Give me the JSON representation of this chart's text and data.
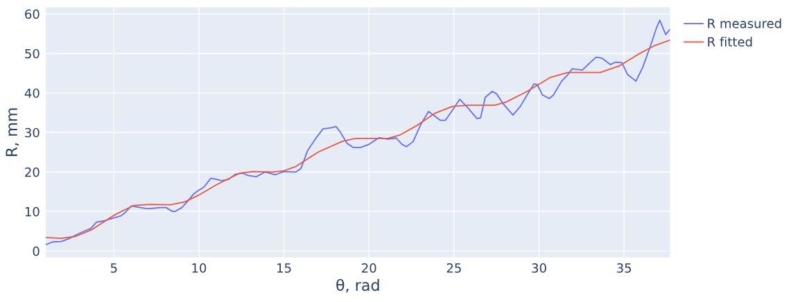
{
  "chart_data": {
    "type": "line",
    "xlabel": "θ, rad",
    "ylabel": "R, mm",
    "xlim": [
      1,
      37.7
    ],
    "ylim": [
      -1.6,
      61.7
    ],
    "xticks": [
      5,
      10,
      15,
      20,
      25,
      30,
      35
    ],
    "yticks": [
      0,
      10,
      20,
      30,
      40,
      50,
      60
    ],
    "grid": true,
    "legend": "top right",
    "marker": "none",
    "line_style": "solid",
    "series": [
      {
        "name": "R measured",
        "color": "#636efa",
        "x": [
          1.0,
          1.4,
          1.9,
          2.35,
          2.75,
          3.3,
          3.64,
          3.98,
          4.39,
          4.93,
          5.41,
          5.68,
          6.02,
          6.43,
          6.97,
          7.79,
          8.06,
          8.4,
          8.6,
          9.0,
          9.36,
          9.7,
          9.97,
          10.3,
          10.7,
          11.0,
          11.33,
          11.73,
          12.14,
          12.55,
          12.9,
          13.37,
          13.9,
          14.5,
          15.0,
          15.7,
          16.0,
          16.4,
          16.9,
          17.3,
          17.8,
          18.06,
          18.3,
          18.7,
          19.08,
          19.5,
          20.0,
          20.6,
          21.1,
          21.6,
          21.94,
          22.2,
          22.6,
          23.03,
          23.5,
          23.85,
          24.18,
          24.5,
          24.87,
          25.34,
          25.8,
          26.36,
          26.56,
          26.84,
          27.25,
          27.5,
          27.9,
          28.47,
          28.9,
          29.3,
          29.7,
          29.9,
          30.2,
          30.6,
          30.85,
          31.33,
          31.67,
          31.94,
          32.55,
          32.96,
          33.37,
          33.7,
          34.2,
          34.5,
          34.87,
          35.2,
          35.7,
          36.1,
          36.56,
          36.9,
          37.1,
          37.45,
          37.7
        ],
        "values": [
          1.6,
          2.3,
          2.4,
          3.1,
          4.0,
          5.1,
          5.7,
          7.3,
          7.6,
          8.3,
          8.9,
          9.8,
          11.4,
          11.1,
          10.7,
          11.0,
          11.0,
          10.1,
          10.0,
          11.0,
          12.7,
          14.5,
          15.3,
          16.2,
          18.4,
          18.2,
          17.8,
          18.1,
          19.4,
          19.7,
          19.1,
          18.8,
          20.0,
          19.3,
          20.1,
          20.0,
          20.9,
          25.5,
          28.7,
          30.9,
          31.2,
          31.5,
          30.2,
          27.3,
          26.2,
          26.2,
          27.0,
          28.7,
          28.3,
          28.6,
          27.0,
          26.4,
          27.7,
          31.9,
          35.3,
          34.2,
          33.1,
          33.1,
          35.4,
          38.4,
          36.3,
          33.5,
          33.7,
          38.9,
          40.4,
          39.8,
          37.2,
          34.4,
          36.6,
          39.5,
          42.3,
          42.1,
          39.5,
          38.6,
          39.5,
          43.0,
          44.5,
          46.1,
          45.8,
          47.5,
          49.1,
          48.8,
          47.2,
          47.8,
          47.7,
          44.7,
          43.0,
          46.5,
          52.0,
          56.4,
          58.4,
          54.8,
          56.1
        ]
      },
      {
        "name": "R fitted",
        "color": "#ef553b",
        "x": [
          1.0,
          1.9,
          2.75,
          3.7,
          5.07,
          6.15,
          7.1,
          8.33,
          9.15,
          9.97,
          11.05,
          12.4,
          13.2,
          14.3,
          15.0,
          15.7,
          17.0,
          18.4,
          19.2,
          21.1,
          21.8,
          22.75,
          23.85,
          24.9,
          25.9,
          27.4,
          28.06,
          29.3,
          30.65,
          31.7,
          33.6,
          34.7,
          35.8,
          36.8,
          37.7
        ],
        "values": [
          3.4,
          3.2,
          3.7,
          5.4,
          9.2,
          11.5,
          11.8,
          11.7,
          12.4,
          14.1,
          16.8,
          19.7,
          20.1,
          20.0,
          20.3,
          21.4,
          25.0,
          27.7,
          28.5,
          28.5,
          29.3,
          31.6,
          34.8,
          36.6,
          36.9,
          36.9,
          37.7,
          40.4,
          43.9,
          45.2,
          45.2,
          46.8,
          49.7,
          52.0,
          53.4
        ]
      }
    ]
  }
}
